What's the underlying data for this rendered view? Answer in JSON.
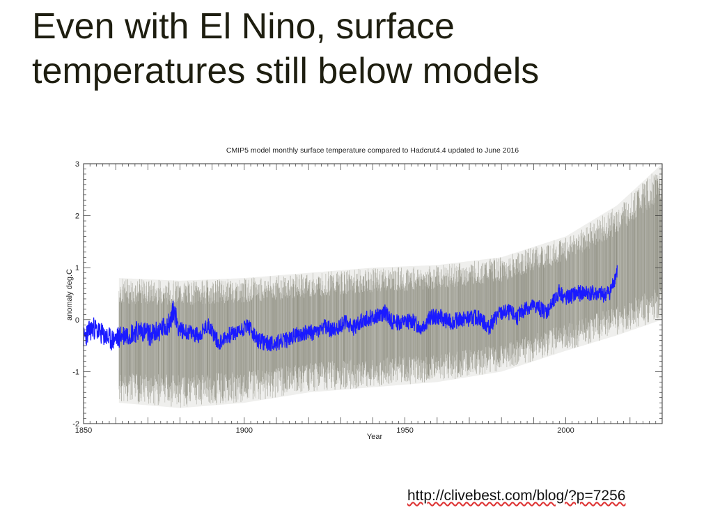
{
  "slide": {
    "title_line1": "Even with El Nino, surface",
    "title_line2": "temperatures still below models",
    "source_url": "http://clivebest.com/blog/?p=7256"
  },
  "colors": {
    "observations": "#1a1aff",
    "model_ensemble": "#7d7d6e",
    "title_text": "#1e1e10",
    "axis": "#333333"
  },
  "chart_data": {
    "type": "line",
    "title": "CMIP5 model monthly surface temperature compared to Hadcrut4.4 updated to June 2016",
    "xlabel": "Year",
    "ylabel": "anomaly deg.C",
    "xlim": [
      1850,
      2030
    ],
    "ylim": [
      -2,
      3
    ],
    "xticks": [
      1850,
      1900,
      1950,
      2000
    ],
    "yticks": [
      -2,
      -1,
      0,
      1,
      2,
      3
    ],
    "grid": false,
    "legend": "none",
    "series": [
      {
        "role": "observations",
        "color": "#1a1aff",
        "x": [
          1850,
          1853,
          1856,
          1859,
          1862,
          1865,
          1868,
          1871,
          1874,
          1877,
          1878,
          1880,
          1883,
          1886,
          1889,
          1892,
          1895,
          1898,
          1901,
          1904,
          1907,
          1910,
          1913,
          1916,
          1919,
          1922,
          1925,
          1928,
          1931,
          1934,
          1937,
          1940,
          1943,
          1944,
          1946,
          1949,
          1952,
          1955,
          1958,
          1961,
          1964,
          1967,
          1970,
          1973,
          1976,
          1979,
          1982,
          1985,
          1988,
          1991,
          1994,
          1997,
          1998,
          2000,
          2003,
          2006,
          2009,
          2012,
          2014,
          2015,
          2016
        ],
        "y": [
          -0.35,
          -0.15,
          -0.3,
          -0.4,
          -0.3,
          -0.25,
          -0.2,
          -0.3,
          -0.2,
          -0.05,
          0.2,
          -0.2,
          -0.25,
          -0.3,
          -0.1,
          -0.45,
          -0.3,
          -0.25,
          -0.1,
          -0.4,
          -0.45,
          -0.45,
          -0.4,
          -0.3,
          -0.25,
          -0.25,
          -0.15,
          -0.2,
          -0.05,
          -0.15,
          0.0,
          0.05,
          0.1,
          0.15,
          -0.05,
          -0.05,
          -0.02,
          -0.15,
          0.05,
          0.05,
          -0.05,
          0.0,
          0.02,
          0.05,
          -0.15,
          0.1,
          0.15,
          0.05,
          0.25,
          0.25,
          0.15,
          0.4,
          0.55,
          0.4,
          0.5,
          0.52,
          0.5,
          0.48,
          0.55,
          0.75,
          0.95
        ]
      },
      {
        "role": "model_ensemble_mean",
        "color": "#7d7d6e",
        "x": [
          1861,
          1880,
          1900,
          1920,
          1940,
          1960,
          1980,
          2000,
          2016,
          2030
        ],
        "y": [
          -0.3,
          -0.3,
          -0.25,
          -0.15,
          -0.05,
          0.0,
          0.15,
          0.55,
          0.95,
          1.5
        ]
      },
      {
        "role": "model_ensemble_upper",
        "color": "#7d7d6e",
        "x": [
          1861,
          1880,
          1900,
          1920,
          1940,
          1960,
          1980,
          2000,
          2016,
          2030
        ],
        "y": [
          0.8,
          0.75,
          0.8,
          0.9,
          1.0,
          1.05,
          1.2,
          1.6,
          2.2,
          3.0
        ]
      },
      {
        "role": "model_ensemble_lower",
        "color": "#7d7d6e",
        "x": [
          1861,
          1880,
          1900,
          1920,
          1940,
          1960,
          1980,
          2000,
          2016,
          2030
        ],
        "y": [
          -1.6,
          -1.7,
          -1.6,
          -1.4,
          -1.3,
          -1.2,
          -1.0,
          -0.6,
          -0.3,
          0.0
        ]
      }
    ]
  }
}
